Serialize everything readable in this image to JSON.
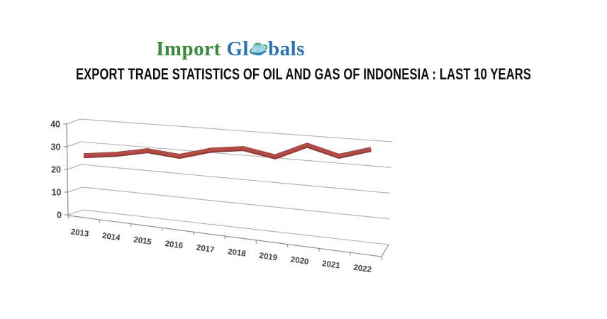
{
  "logo": {
    "text_prefix": "Import",
    "text_mid": "Gl",
    "text_suffix": "bals",
    "green": "#3a8a3c",
    "blue": "#2a72b8"
  },
  "title": "EXPORT TRADE STATISTICS OF OIL AND GAS OF INDONESIA : LAST 10 YEARS",
  "chart_data": {
    "type": "line",
    "style": "3d-ribbon-perspective",
    "title": "",
    "categories": [
      "2013",
      "2014",
      "2015",
      "2016",
      "2017",
      "2018",
      "2019",
      "2020",
      "2021",
      "2022"
    ],
    "series": [
      {
        "color": "#a8443f",
        "values": [
          27,
          28,
          30,
          28,
          31,
          32,
          29,
          34,
          30,
          33
        ]
      }
    ],
    "xlabel": "",
    "ylabel": "",
    "ylim": [
      0,
      40
    ],
    "yticks": [
      0,
      10,
      20,
      30,
      40
    ],
    "grid": true,
    "legend": false,
    "gridline_color": "#b5b5b5",
    "axis_color": "#8f8f8f",
    "tick_label_color": "#3f3f3f",
    "line_dark_edge": "#8e3834",
    "line_face": "#b24c46"
  }
}
